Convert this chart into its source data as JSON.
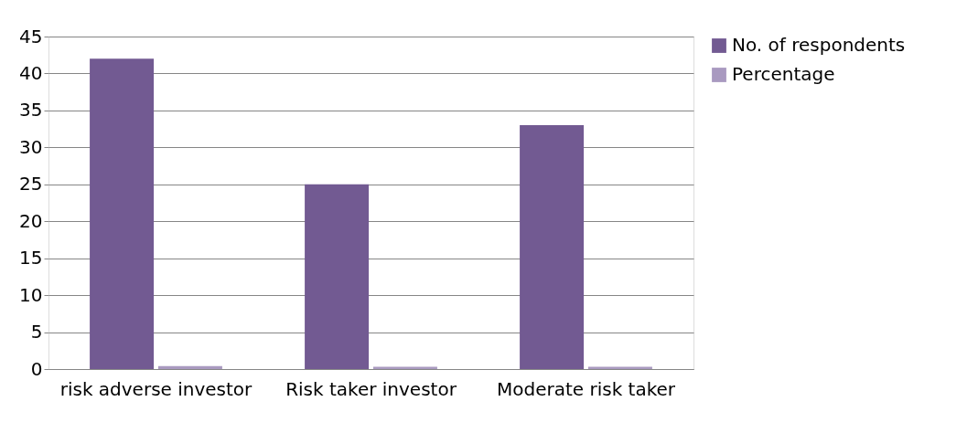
{
  "chart_data": {
    "type": "bar",
    "categories": [
      "risk adverse investor",
      "Risk taker investor",
      "Moderate risk taker"
    ],
    "series": [
      {
        "name": "No. of respondents",
        "color": "#725a92",
        "values": [
          42,
          25,
          33
        ]
      },
      {
        "name": "Percentage",
        "color": "#a99ac0",
        "values": [
          0.4,
          0.3,
          0.3
        ]
      }
    ],
    "ylim": [
      0,
      45
    ],
    "yticks": [
      0,
      5,
      10,
      15,
      20,
      25,
      30,
      35,
      40,
      45
    ],
    "grid": "y",
    "legend": "right"
  }
}
